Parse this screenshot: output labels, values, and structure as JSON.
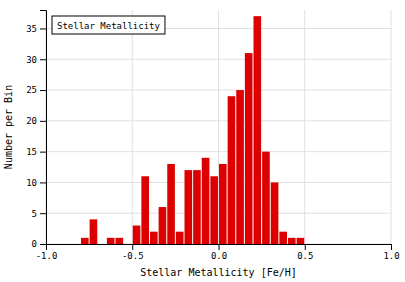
{
  "chart_data": {
    "type": "histogram",
    "xlabel": "Stellar Metallicity [Fe/H]",
    "ylabel": "Number per Bin",
    "bins": [
      -0.8,
      -0.75,
      -0.7,
      -0.65,
      -0.6,
      -0.55,
      -0.5,
      -0.45,
      -0.4,
      -0.35,
      -0.3,
      -0.25,
      -0.2,
      -0.15,
      -0.1,
      -0.05,
      0.0,
      0.05,
      0.1,
      0.15,
      0.2,
      0.25,
      0.3,
      0.35,
      0.4,
      0.45,
      0.5
    ],
    "series": [
      {
        "name": "Stellar Metallicity",
        "color": "#dd0000",
        "values": [
          1,
          4,
          0,
          1,
          1,
          0,
          3,
          11,
          2,
          6,
          13,
          2,
          12,
          12,
          14,
          11,
          13,
          24,
          25,
          31,
          37,
          15,
          10,
          2,
          1,
          1
        ]
      }
    ],
    "xlim": [
      -1.0,
      1.0
    ],
    "ylim": [
      0,
      38
    ],
    "xticks": [
      {
        "value": -1.0,
        "label": "-1.0"
      },
      {
        "value": -0.5,
        "label": "-0.5"
      },
      {
        "value": 0.0,
        "label": "0.0"
      },
      {
        "value": 0.5,
        "label": "0.5"
      },
      {
        "value": 1.0,
        "label": "1.0"
      }
    ],
    "yticks": [
      0,
      5,
      10,
      15,
      20,
      25,
      30,
      35
    ],
    "grid": true,
    "legend": "upper left"
  }
}
